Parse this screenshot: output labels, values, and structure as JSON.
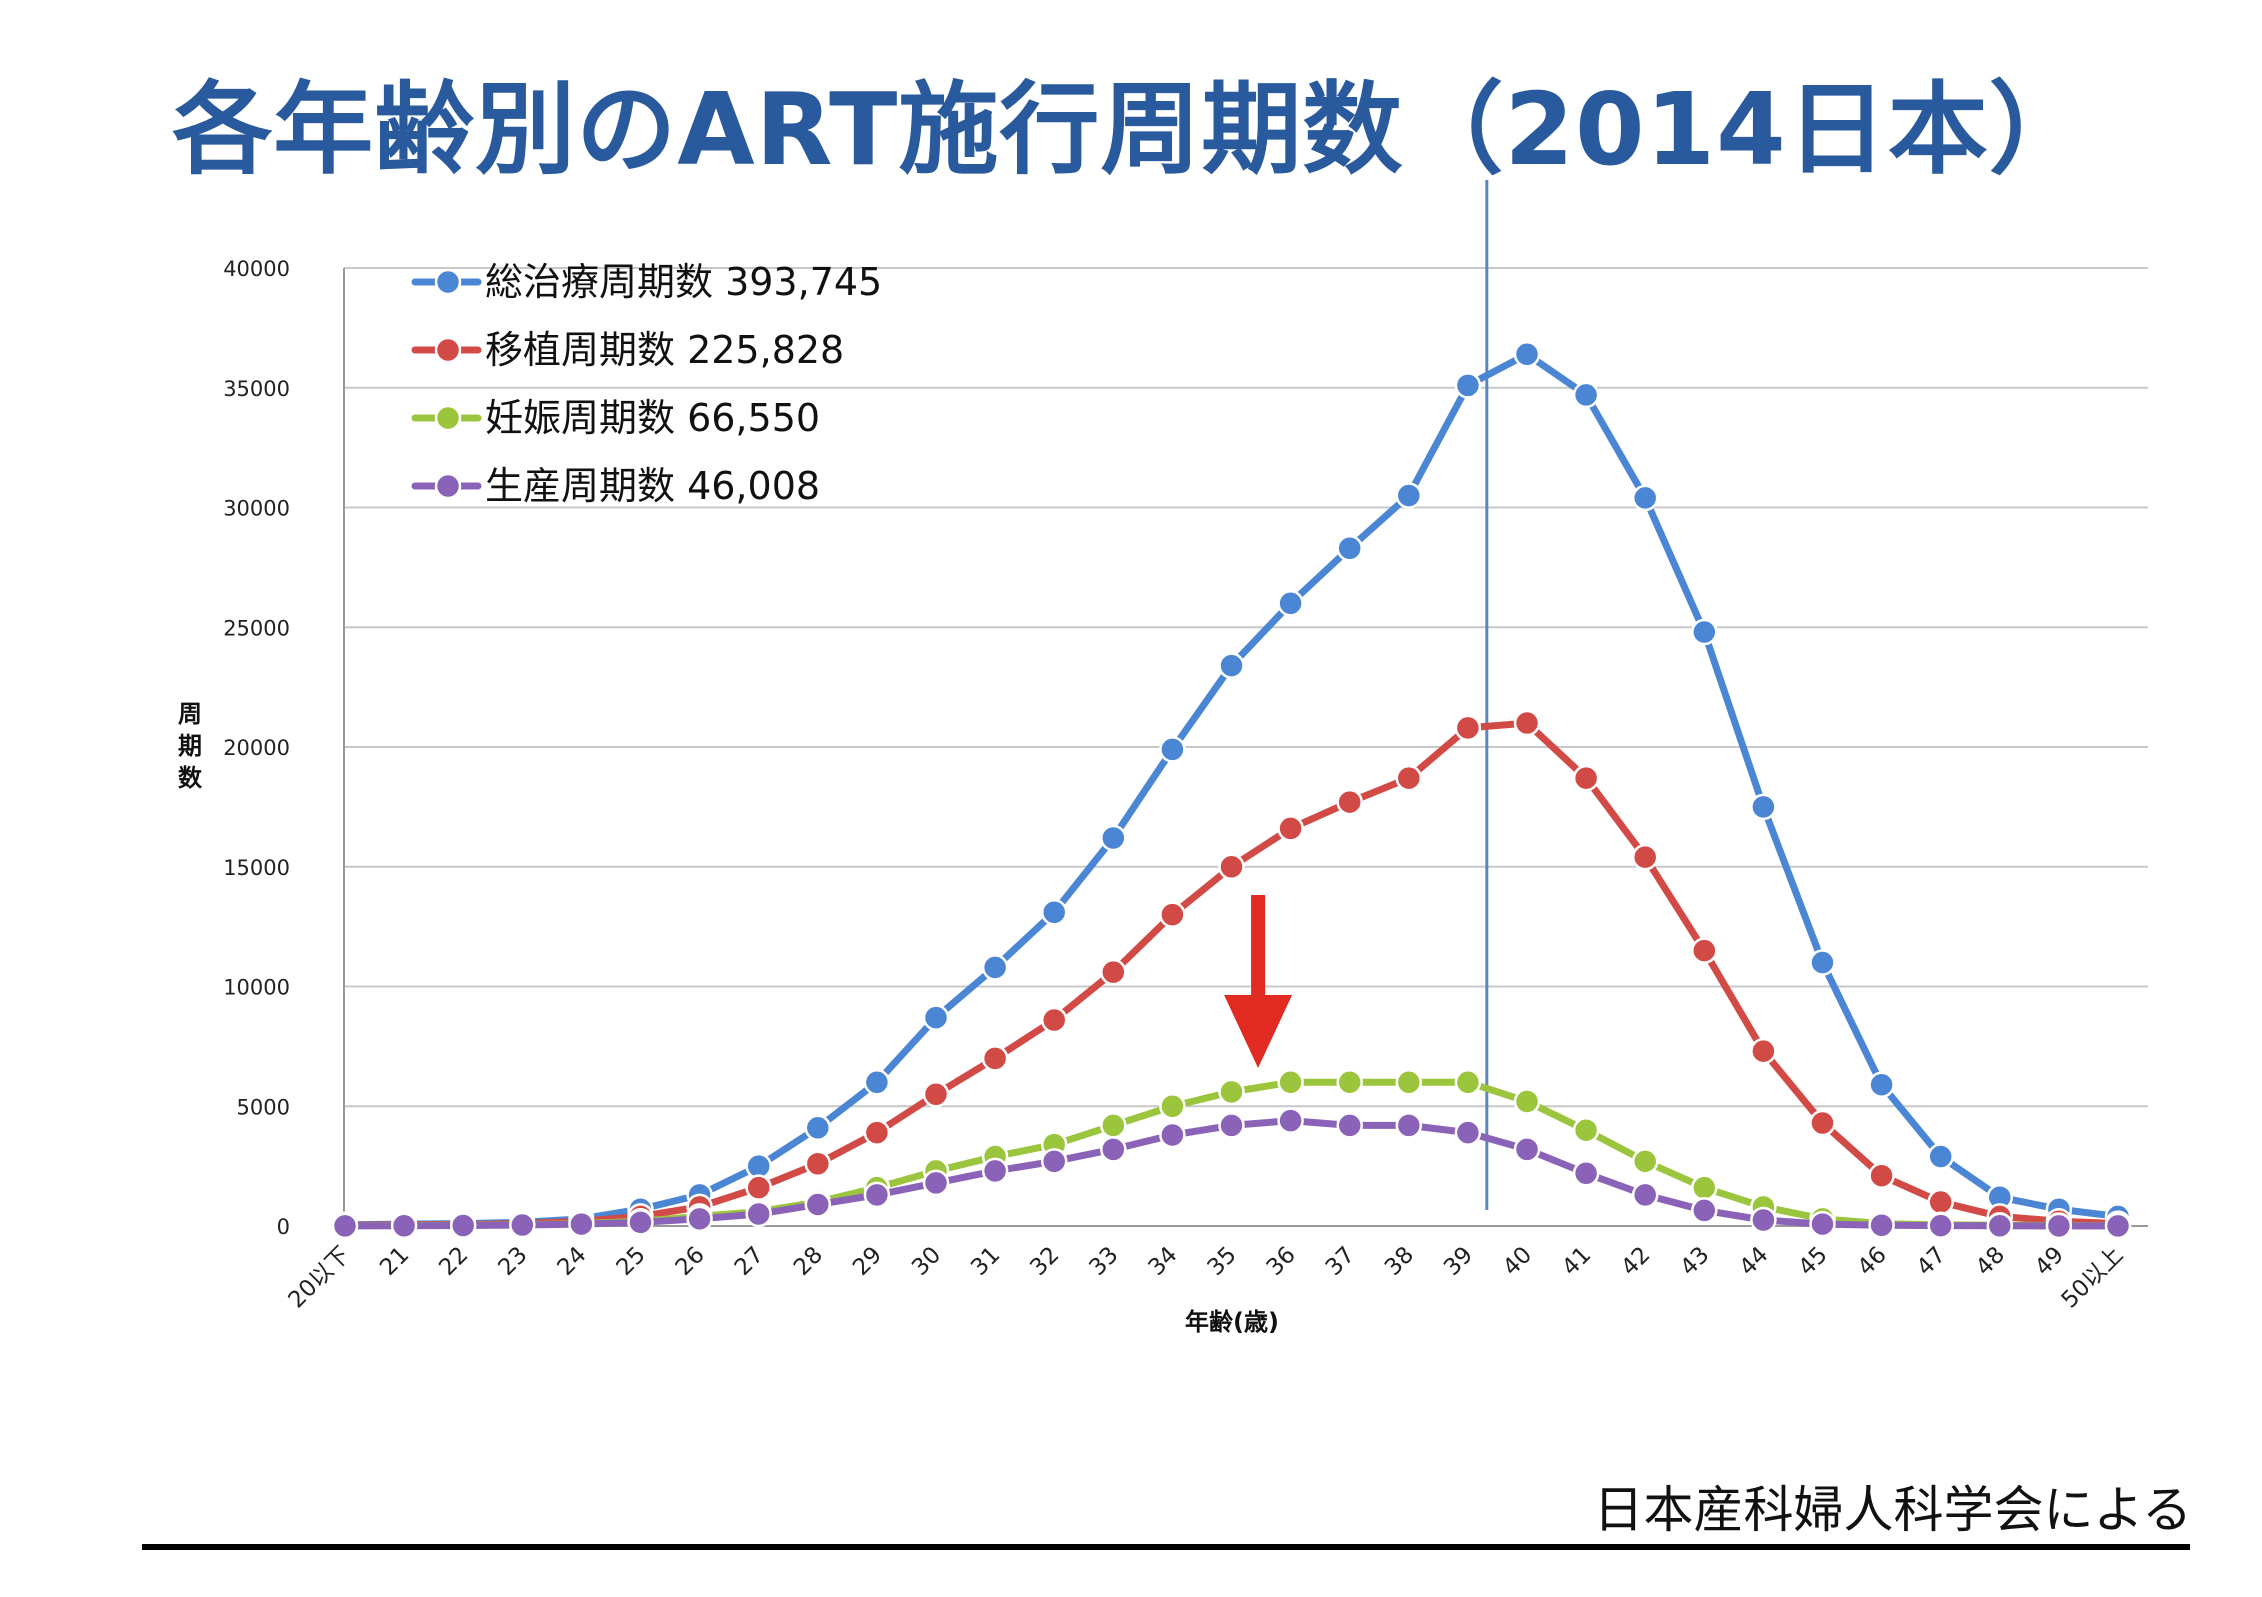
{
  "title": "各年齢別のART施行周期数（2014日本）",
  "source": "日本産科婦人科学会による",
  "chart_data": {
    "type": "line",
    "xlabel": "年齢(歳)",
    "ylabel": "周期数",
    "ylim": [
      0,
      40000
    ],
    "yticks": [
      0,
      5000,
      10000,
      15000,
      20000,
      25000,
      30000,
      35000,
      40000
    ],
    "grid": "horizontal",
    "legend_position": "top-left",
    "reference_line_between": [
      "39",
      "40"
    ],
    "annotation": "red-down-arrow-at-35-36",
    "categories": [
      "20以下",
      "21",
      "22",
      "23",
      "24",
      "25",
      "26",
      "27",
      "28",
      "29",
      "30",
      "31",
      "32",
      "33",
      "34",
      "35",
      "36",
      "37",
      "38",
      "39",
      "40",
      "41",
      "42",
      "43",
      "44",
      "45",
      "46",
      "47",
      "48",
      "49",
      "50以上"
    ],
    "series": [
      {
        "name": "総治療周期数 393,745",
        "color": "#4a86d4",
        "values": [
          50,
          80,
          100,
          150,
          300,
          700,
          1300,
          2500,
          4100,
          6000,
          8700,
          10800,
          13100,
          16200,
          19900,
          23400,
          26000,
          28300,
          30500,
          35100,
          36400,
          34700,
          30400,
          24800,
          17500,
          11000,
          5900,
          2900,
          1200,
          700,
          400
        ]
      },
      {
        "name": "移植周期数 225,828",
        "color": "#d24a46",
        "values": [
          30,
          50,
          60,
          100,
          200,
          400,
          800,
          1600,
          2600,
          3900,
          5500,
          7000,
          8600,
          10600,
          13000,
          15000,
          16600,
          17700,
          18700,
          20800,
          21000,
          18700,
          15400,
          11500,
          7300,
          4300,
          2100,
          1000,
          400,
          200,
          100
        ]
      },
      {
        "name": "妊娠周期数 66,550",
        "color": "#9bc53d",
        "values": [
          10,
          20,
          30,
          50,
          100,
          200,
          400,
          600,
          1000,
          1600,
          2300,
          2900,
          3400,
          4200,
          5000,
          5600,
          6000,
          6000,
          6000,
          6000,
          5200,
          4000,
          2700,
          1600,
          800,
          300,
          100,
          50,
          30,
          20,
          10
        ]
      },
      {
        "name": "生産周期数 46,008",
        "color": "#8a63b8",
        "values": [
          5,
          10,
          20,
          40,
          80,
          150,
          300,
          500,
          900,
          1300,
          1800,
          2300,
          2700,
          3200,
          3800,
          4200,
          4400,
          4200,
          4200,
          3900,
          3200,
          2200,
          1300,
          650,
          250,
          80,
          30,
          15,
          10,
          5,
          5
        ]
      }
    ]
  }
}
